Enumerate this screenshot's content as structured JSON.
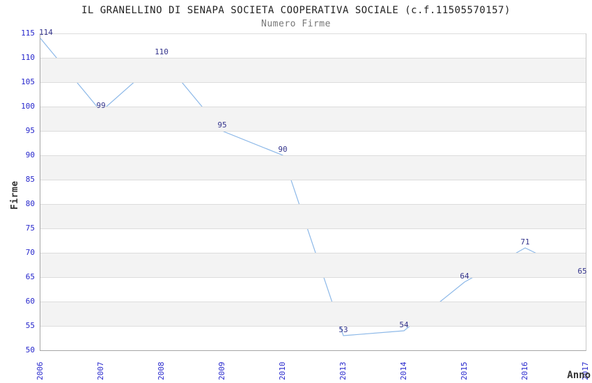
{
  "chart_data": {
    "type": "line",
    "title": "IL GRANELLINO DI SENAPA SOCIETA COOPERATIVA SOCIALE (c.f.11505570157)",
    "subtitle": "Numero Firme",
    "xlabel": "Anno",
    "ylabel": "Firme",
    "categories": [
      "2006",
      "2007",
      "2008",
      "2009",
      "2010",
      "2013",
      "2014",
      "2015",
      "2016",
      "2017"
    ],
    "values": [
      114,
      99,
      110,
      95,
      90,
      53,
      54,
      64,
      71,
      65
    ],
    "ylim": [
      50,
      115
    ],
    "ytick_step": 5,
    "grid": "horizontal",
    "bands": "alternating-horizontal",
    "legend": "none",
    "point_labels": "above-points",
    "colors": {
      "line": "#8cb8e8",
      "tick_label": "#2626cc",
      "point_label": "#34348c",
      "band": "#f3f3f3",
      "gridline": "#dcdcdc",
      "title": "#222222",
      "subtitle": "#777777",
      "axis_label": "#333333"
    }
  }
}
